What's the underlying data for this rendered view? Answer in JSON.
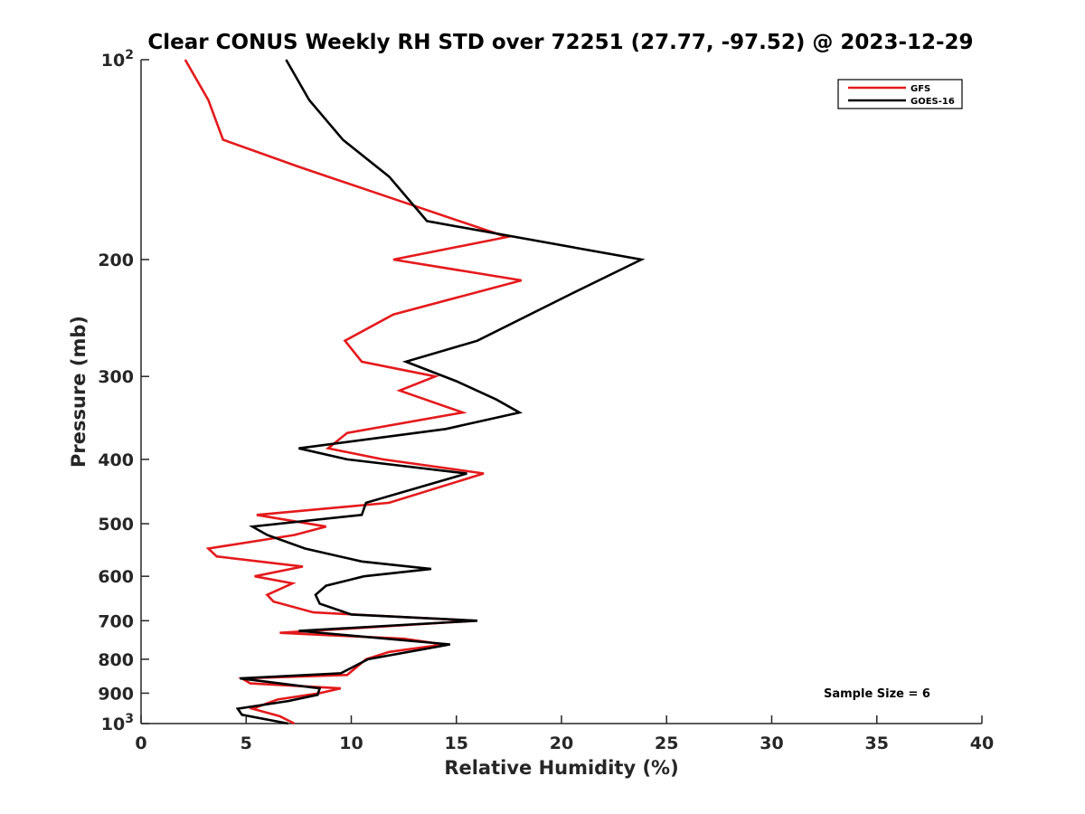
{
  "chart_data": {
    "type": "line",
    "title": "Clear CONUS Weekly RH STD over 72251 (27.77, -97.52) @ 2023-12-29",
    "xlabel": "Relative Humidity (%)",
    "ylabel": "Pressure (mb)",
    "xlim": [
      0,
      40
    ],
    "ylim": [
      100,
      1000
    ],
    "y_scale": "log",
    "y_reversed": true,
    "x_ticks": [
      "0",
      "5",
      "10",
      "15",
      "20",
      "25",
      "30",
      "35",
      "40"
    ],
    "y_ticks": [
      {
        "value": 100,
        "base": "10",
        "exp": "2"
      },
      {
        "value": 200,
        "label": "200"
      },
      {
        "value": 300,
        "label": "300"
      },
      {
        "value": 400,
        "label": "400"
      },
      {
        "value": 500,
        "label": "500"
      },
      {
        "value": 600,
        "label": "600"
      },
      {
        "value": 700,
        "label": "700"
      },
      {
        "value": 800,
        "label": "800"
      },
      {
        "value": 900,
        "label": "900"
      },
      {
        "value": 1000,
        "base": "10",
        "exp": "3"
      }
    ],
    "legend_position": "top-right",
    "annotation": "Sample Size = 6",
    "series": [
      {
        "name": "GFS",
        "color": "#e41a1c",
        "points": [
          [
            2.1,
            100
          ],
          [
            3.2,
            115
          ],
          [
            3.9,
            132
          ],
          [
            7.5,
            145
          ],
          [
            11.5,
            160
          ],
          [
            17.4,
            185
          ],
          [
            12.0,
            200
          ],
          [
            18.1,
            215
          ],
          [
            12.0,
            242
          ],
          [
            9.7,
            265
          ],
          [
            10.5,
            285
          ],
          [
            14.0,
            300
          ],
          [
            12.3,
            315
          ],
          [
            15.3,
            340
          ],
          [
            9.8,
            365
          ],
          [
            8.9,
            385
          ],
          [
            11.5,
            400
          ],
          [
            16.3,
            420
          ],
          [
            11.8,
            465
          ],
          [
            5.5,
            485
          ],
          [
            8.8,
            505
          ],
          [
            7.3,
            520
          ],
          [
            3.2,
            545
          ],
          [
            3.6,
            560
          ],
          [
            7.7,
            580
          ],
          [
            5.4,
            600
          ],
          [
            7.2,
            615
          ],
          [
            6.0,
            640
          ],
          [
            6.3,
            655
          ],
          [
            8.2,
            680
          ],
          [
            15.9,
            700
          ],
          [
            6.6,
            730
          ],
          [
            12.5,
            745
          ],
          [
            14.4,
            760
          ],
          [
            11.8,
            780
          ],
          [
            10.7,
            800
          ],
          [
            9.8,
            845
          ],
          [
            4.8,
            855
          ],
          [
            5.2,
            870
          ],
          [
            9.5,
            885
          ],
          [
            8.5,
            900
          ],
          [
            6.5,
            920
          ],
          [
            5.3,
            950
          ],
          [
            6.6,
            975
          ],
          [
            7.3,
            1000
          ]
        ]
      },
      {
        "name": "GOES-16",
        "color": "#000000",
        "points": [
          [
            6.9,
            100
          ],
          [
            8.0,
            115
          ],
          [
            9.6,
            132
          ],
          [
            11.8,
            150
          ],
          [
            13.6,
            175
          ],
          [
            23.8,
            200
          ],
          [
            20.5,
            225
          ],
          [
            16.0,
            265
          ],
          [
            12.6,
            285
          ],
          [
            15.0,
            305
          ],
          [
            16.9,
            325
          ],
          [
            18.0,
            340
          ],
          [
            14.5,
            360
          ],
          [
            7.5,
            385
          ],
          [
            9.8,
            400
          ],
          [
            15.5,
            420
          ],
          [
            10.7,
            465
          ],
          [
            10.5,
            485
          ],
          [
            5.3,
            505
          ],
          [
            6.0,
            520
          ],
          [
            7.8,
            545
          ],
          [
            10.5,
            570
          ],
          [
            13.8,
            585
          ],
          [
            10.6,
            600
          ],
          [
            8.8,
            620
          ],
          [
            8.3,
            640
          ],
          [
            8.5,
            660
          ],
          [
            10.0,
            685
          ],
          [
            16.0,
            700
          ],
          [
            7.5,
            725
          ],
          [
            14.7,
            760
          ],
          [
            10.8,
            800
          ],
          [
            9.5,
            840
          ],
          [
            4.7,
            855
          ],
          [
            8.5,
            885
          ],
          [
            8.4,
            905
          ],
          [
            7.0,
            925
          ],
          [
            4.6,
            950
          ],
          [
            4.8,
            970
          ],
          [
            7.0,
            1000
          ]
        ]
      }
    ]
  }
}
